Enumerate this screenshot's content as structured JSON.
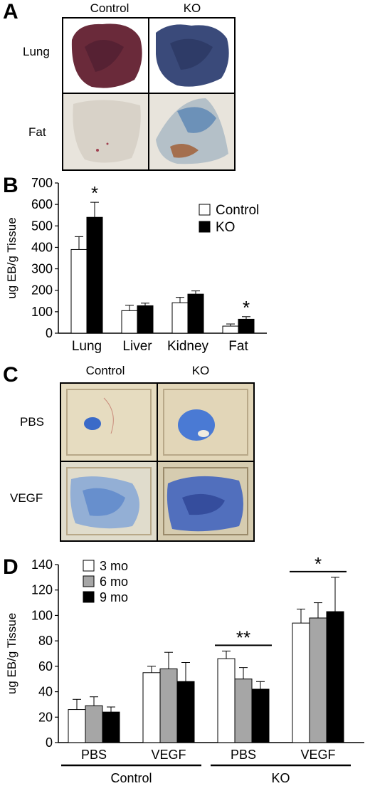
{
  "panel_a": {
    "letter": "A",
    "col_labels": [
      "Control",
      "KO"
    ],
    "row_labels": [
      "Lung",
      "Fat"
    ]
  },
  "panel_b": {
    "letter": "B"
  },
  "panel_c": {
    "letter": "C",
    "col_labels": [
      "Control",
      "KO"
    ],
    "row_labels": [
      "PBS",
      "VEGF"
    ]
  },
  "panel_d": {
    "letter": "D"
  },
  "colors": {
    "control": "#ffffff",
    "ko": "#000000",
    "mo3": "#ffffff",
    "mo6": "#a6a6a6",
    "mo9": "#000000",
    "lung_control": "#6a2a3a",
    "lung_ko": "#3a4a7a",
    "fat_control": "#d8d2c8",
    "fat_ko": "#8aa0b4",
    "dermis_bg": "#e6dcc0",
    "dye_blue": "#3a6ac8"
  },
  "chart_data": [
    {
      "type": "bar",
      "panel": "B",
      "categories": [
        "Lung",
        "Liver",
        "Kidney",
        "Fat"
      ],
      "ylabel": "ug EB/g Tissue",
      "ylim": [
        0,
        700
      ],
      "yticks": [
        0,
        100,
        200,
        300,
        400,
        500,
        600,
        700
      ],
      "legend_position": "top-right",
      "grid": false,
      "series": [
        {
          "name": "Control",
          "values": [
            390,
            105,
            142,
            33
          ],
          "errors": [
            60,
            25,
            25,
            10
          ]
        },
        {
          "name": "KO",
          "values": [
            540,
            128,
            182,
            65
          ],
          "errors": [
            70,
            12,
            15,
            12
          ]
        }
      ],
      "annotations": [
        {
          "text": "*",
          "category": "Lung",
          "series": "KO"
        },
        {
          "text": "*",
          "category": "Fat",
          "series": "KO"
        }
      ]
    },
    {
      "type": "bar",
      "panel": "D",
      "categories": [
        "PBS",
        "VEGF",
        "PBS",
        "VEGF"
      ],
      "groups": [
        {
          "label": "Control",
          "categories": [
            0,
            1
          ]
        },
        {
          "label": "KO",
          "categories": [
            2,
            3
          ]
        }
      ],
      "ylabel": "ug EB/g Tissue",
      "ylim": [
        0,
        140
      ],
      "yticks": [
        0,
        20,
        40,
        60,
        80,
        100,
        120,
        140
      ],
      "legend_position": "top-left",
      "grid": false,
      "series": [
        {
          "name": "3 mo",
          "values": [
            26,
            55,
            66,
            94
          ],
          "errors": [
            8,
            5,
            6,
            11
          ]
        },
        {
          "name": "6 mo",
          "values": [
            29,
            58,
            50,
            98
          ],
          "errors": [
            7,
            13,
            9,
            12
          ]
        },
        {
          "name": "9 mo",
          "values": [
            24,
            48,
            42,
            103
          ],
          "errors": [
            4,
            15,
            6,
            27
          ]
        }
      ],
      "annotations": [
        {
          "text": "**",
          "category_index": 2
        },
        {
          "text": "*",
          "category_index": 3
        }
      ]
    }
  ]
}
